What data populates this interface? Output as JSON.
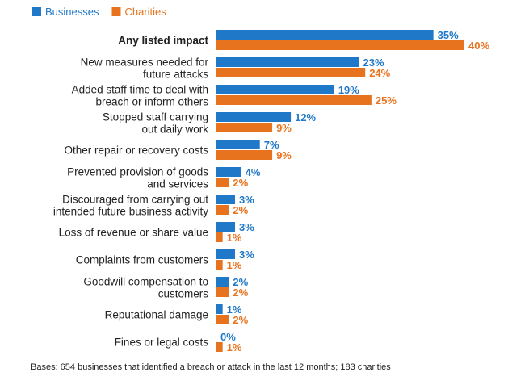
{
  "chart_data": {
    "type": "bar",
    "orientation": "horizontal",
    "legend_position": "top-left",
    "grid": false,
    "value_unit": "%",
    "categories": [
      "Any listed impact",
      "New measures needed for future attacks",
      "Added staff time to deal with breach or inform others",
      "Stopped staff carrying out daily work",
      "Other repair or recovery costs",
      "Prevented provision of goods and services",
      "Discouraged from carrying out intended future business activity",
      "Loss of revenue or share value",
      "Complaints from customers",
      "Goodwill compensation to customers",
      "Reputational damage",
      "Fines or legal costs"
    ],
    "category_lines": [
      [
        "Any listed impact"
      ],
      [
        "New measures needed for",
        "future attacks"
      ],
      [
        "Added staff time to deal with",
        "breach or inform others"
      ],
      [
        "Stopped staff carrying",
        "out daily work"
      ],
      [
        "Other repair or recovery costs"
      ],
      [
        "Prevented provision of goods",
        "and services"
      ],
      [
        "Discouraged from carrying out",
        "intended future business activity"
      ],
      [
        "Loss of revenue or share value"
      ],
      [
        "Complaints from customers"
      ],
      [
        "Goodwill compensation to",
        "customers"
      ],
      [
        "Reputational damage"
      ],
      [
        "Fines or legal costs"
      ]
    ],
    "series": [
      {
        "name": "Businesses",
        "color": "#1f78c8",
        "values": [
          35,
          23,
          19,
          12,
          7,
          4,
          3,
          3,
          3,
          2,
          1,
          0
        ]
      },
      {
        "name": "Charities",
        "color": "#e8731f",
        "values": [
          40,
          24,
          25,
          9,
          9,
          2,
          2,
          1,
          1,
          2,
          2,
          1
        ]
      }
    ],
    "xlim": [
      0,
      40
    ],
    "footnote": "Bases: 654 businesses that identified a breach or attack in the last 12 months; 183 charities"
  }
}
